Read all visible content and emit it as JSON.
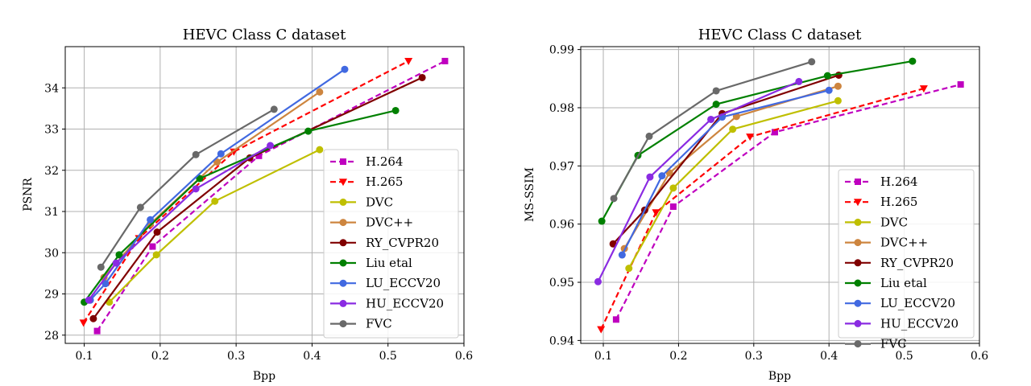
{
  "chart_data": [
    {
      "type": "line",
      "title": "HEVC Class C dataset",
      "xlabel": "Bpp",
      "ylabel": "PSNR",
      "xlim": [
        0.075,
        0.6
      ],
      "ylim": [
        27.8,
        35.0
      ],
      "xticks": [
        0.1,
        0.2,
        0.3,
        0.4,
        0.5,
        0.6
      ],
      "xtick_labels": [
        "0.1",
        "0.2",
        "0.3",
        "0.4",
        "0.5",
        "0.6"
      ],
      "yticks": [
        28,
        29,
        30,
        31,
        32,
        33,
        34
      ],
      "ytick_labels": [
        "28",
        "29",
        "30",
        "31",
        "32",
        "33",
        "34"
      ],
      "grid": true,
      "legend": "lower-right",
      "series": [
        {
          "name": "H.264",
          "color": "#bf00bf",
          "dash": true,
          "marker": "square",
          "x": [
            0.117,
            0.19,
            0.33,
            0.575
          ],
          "y": [
            28.1,
            30.15,
            32.35,
            34.65
          ]
        },
        {
          "name": "H.265",
          "color": "#ff0000",
          "dash": true,
          "marker": "triangle-down",
          "x": [
            0.099,
            0.172,
            0.297,
            0.527
          ],
          "y": [
            28.3,
            30.35,
            32.45,
            34.65
          ]
        },
        {
          "name": "DVC",
          "color": "#bfbf00",
          "dash": false,
          "marker": "circle",
          "x": [
            0.133,
            0.195,
            0.272,
            0.41
          ],
          "y": [
            28.8,
            29.95,
            31.25,
            32.5
          ]
        },
        {
          "name": "DVC++",
          "color": "#cd853f",
          "dash": false,
          "marker": "circle",
          "x": [
            0.126,
            0.187,
            0.275,
            0.41
          ],
          "y": [
            29.4,
            30.7,
            32.2,
            33.9
          ]
        },
        {
          "name": "RY_CVPR20",
          "color": "#800000",
          "dash": false,
          "marker": "circle",
          "x": [
            0.112,
            0.196,
            0.318,
            0.545
          ],
          "y": [
            28.4,
            30.5,
            32.3,
            34.25
          ]
        },
        {
          "name": "Liu etal",
          "color": "#008000",
          "dash": false,
          "marker": "circle",
          "x": [
            0.1,
            0.146,
            0.252,
            0.395,
            0.51
          ],
          "y": [
            28.8,
            29.95,
            31.8,
            32.95,
            33.45
          ]
        },
        {
          "name": "LU_ECCV20",
          "color": "#4169e1",
          "dash": false,
          "marker": "circle",
          "x": [
            0.108,
            0.128,
            0.187,
            0.28,
            0.443
          ],
          "y": [
            28.85,
            29.25,
            30.8,
            32.4,
            34.45
          ]
        },
        {
          "name": "HU_ECCV20",
          "color": "#8a2be2",
          "dash": false,
          "marker": "circle",
          "x": [
            0.106,
            0.142,
            0.247,
            0.345
          ],
          "y": [
            28.85,
            29.75,
            31.55,
            32.6
          ]
        },
        {
          "name": "FVC",
          "color": "#696969",
          "dash": false,
          "marker": "circle",
          "x": [
            0.122,
            0.174,
            0.247,
            0.35
          ],
          "y": [
            29.65,
            31.1,
            32.38,
            33.48
          ]
        }
      ]
    },
    {
      "type": "line",
      "title": "HEVC Class C dataset",
      "xlabel": "Bpp",
      "ylabel": "MS-SSIM",
      "xlim": [
        0.07,
        0.6
      ],
      "ylim": [
        0.9395,
        0.9905
      ],
      "xticks": [
        0.1,
        0.2,
        0.3,
        0.4,
        0.5,
        0.6
      ],
      "xtick_labels": [
        "0.1",
        "0.2",
        "0.3",
        "0.4",
        "0.5",
        "0.6"
      ],
      "yticks": [
        0.94,
        0.95,
        0.96,
        0.97,
        0.98,
        0.99
      ],
      "ytick_labels": [
        "0.94",
        "0.95",
        "0.96",
        "0.97",
        "0.98",
        "0.99"
      ],
      "grid": true,
      "legend": "lower-right",
      "series": [
        {
          "name": "H.264",
          "color": "#bf00bf",
          "dash": true,
          "marker": "square",
          "x": [
            0.117,
            0.193,
            0.328,
            0.575
          ],
          "y": [
            0.9436,
            0.963,
            0.9758,
            0.984
          ]
        },
        {
          "name": "H.265",
          "color": "#ff0000",
          "dash": true,
          "marker": "triangle-down",
          "x": [
            0.097,
            0.17,
            0.295,
            0.526
          ],
          "y": [
            0.9419,
            0.962,
            0.975,
            0.9833
          ]
        },
        {
          "name": "DVC",
          "color": "#bfbf00",
          "dash": false,
          "marker": "circle",
          "x": [
            0.134,
            0.193,
            0.272,
            0.412
          ],
          "y": [
            0.9524,
            0.9662,
            0.9763,
            0.9812
          ]
        },
        {
          "name": "DVC++",
          "color": "#cd853f",
          "dash": false,
          "marker": "circle",
          "x": [
            0.128,
            0.188,
            0.277,
            0.412
          ],
          "y": [
            0.9558,
            0.9688,
            0.9785,
            0.9837
          ]
        },
        {
          "name": "RY_CVPR20",
          "color": "#800000",
          "dash": false,
          "marker": "circle",
          "x": [
            0.113,
            0.155,
            0.258,
            0.413
          ],
          "y": [
            0.9566,
            0.9624,
            0.979,
            0.9856
          ]
        },
        {
          "name": "Liu etal",
          "color": "#008000",
          "dash": false,
          "marker": "circle",
          "x": [
            0.098,
            0.146,
            0.25,
            0.398,
            0.511
          ],
          "y": [
            0.9605,
            0.9718,
            0.9806,
            0.9855,
            0.988
          ]
        },
        {
          "name": "LU_ECCV20",
          "color": "#4169e1",
          "dash": false,
          "marker": "circle",
          "x": [
            0.125,
            0.178,
            0.258,
            0.4
          ],
          "y": [
            0.9547,
            0.9683,
            0.9784,
            0.983
          ]
        },
        {
          "name": "HU_ECCV20",
          "color": "#8a2be2",
          "dash": false,
          "marker": "circle",
          "x": [
            0.093,
            0.162,
            0.243,
            0.36
          ],
          "y": [
            0.9501,
            0.9681,
            0.978,
            0.9845
          ]
        },
        {
          "name": "FVC",
          "color": "#696969",
          "dash": false,
          "marker": "circle",
          "x": [
            0.114,
            0.161,
            0.25,
            0.377
          ],
          "y": [
            0.9644,
            0.9751,
            0.9829,
            0.9879
          ]
        }
      ]
    }
  ]
}
